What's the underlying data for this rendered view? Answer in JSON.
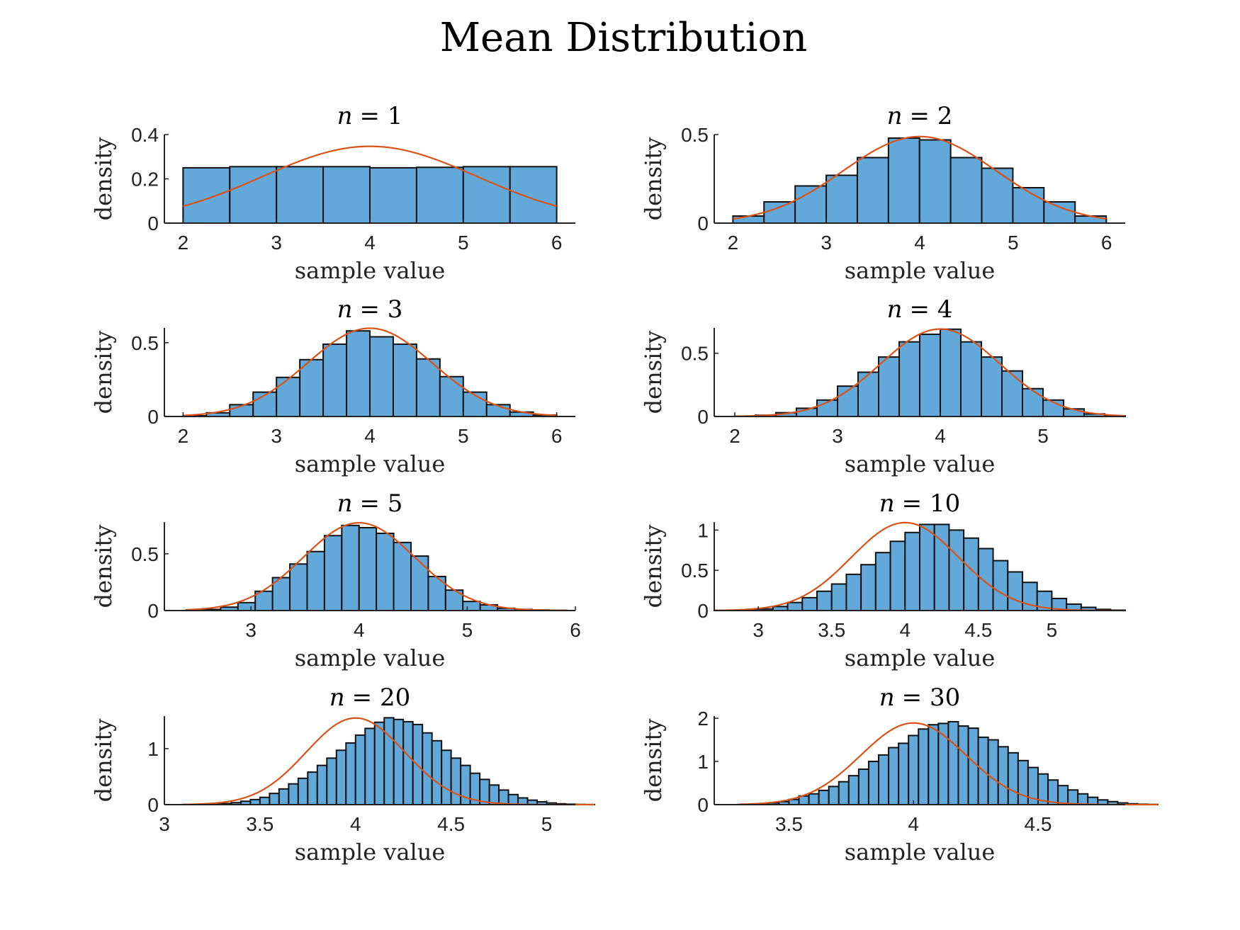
{
  "figure": {
    "title": "Mean Distribution",
    "colors": {
      "bar": "#62a8d9",
      "edge": "#111111",
      "curve": "#d95319"
    }
  },
  "chart_data": [
    {
      "type": "bar",
      "title_var": "n",
      "title_eq": "= 1",
      "xlabel": "sample value",
      "ylabel": "density",
      "xlim": [
        1.8,
        6.2
      ],
      "ylim": [
        0,
        0.4
      ],
      "xticks": [
        2,
        3,
        4,
        5,
        6
      ],
      "yticks": [
        0,
        0.2,
        0.4
      ],
      "bin_start": 2,
      "bin_width": 0.5,
      "values": [
        0.25,
        0.255,
        0.255,
        0.255,
        0.25,
        0.252,
        0.255,
        0.255
      ],
      "curve": {
        "mu": 4,
        "sigma": 1.15
      }
    },
    {
      "type": "bar",
      "title_var": "n",
      "title_eq": "= 2",
      "xlabel": "sample value",
      "ylabel": "density",
      "xlim": [
        1.8,
        6.2
      ],
      "ylim": [
        0,
        0.5
      ],
      "xticks": [
        2,
        3,
        4,
        5,
        6
      ],
      "yticks": [
        0,
        0.5
      ],
      "bin_start": 2,
      "bin_width": 0.333,
      "values": [
        0.04,
        0.12,
        0.21,
        0.27,
        0.37,
        0.48,
        0.47,
        0.37,
        0.31,
        0.2,
        0.12,
        0.04
      ],
      "curve": {
        "mu": 4,
        "sigma": 0.816
      }
    },
    {
      "type": "bar",
      "title_var": "n",
      "title_eq": "= 3",
      "xlabel": "sample value",
      "ylabel": "density",
      "xlim": [
        1.8,
        6.2
      ],
      "ylim": [
        0,
        0.6
      ],
      "xticks": [
        2,
        3,
        4,
        5,
        6
      ],
      "yticks": [
        0,
        0.5
      ],
      "bin_start": 2,
      "bin_width": 0.25,
      "values": [
        0.005,
        0.025,
        0.08,
        0.165,
        0.265,
        0.385,
        0.49,
        0.58,
        0.54,
        0.49,
        0.39,
        0.27,
        0.165,
        0.08,
        0.03,
        0.01
      ],
      "curve": {
        "mu": 4,
        "sigma": 0.667
      }
    },
    {
      "type": "bar",
      "title_var": "n",
      "title_eq": "= 4",
      "xlabel": "sample value",
      "ylabel": "density",
      "xlim": [
        1.8,
        5.8
      ],
      "ylim": [
        0,
        0.7
      ],
      "xticks": [
        2,
        3,
        4,
        5
      ],
      "yticks": [
        0,
        0.5
      ],
      "bin_start": 2,
      "bin_width": 0.2,
      "values": [
        0.002,
        0.01,
        0.03,
        0.065,
        0.13,
        0.24,
        0.35,
        0.47,
        0.59,
        0.65,
        0.69,
        0.59,
        0.47,
        0.36,
        0.22,
        0.13,
        0.06,
        0.02,
        0.005
      ],
      "curve": {
        "mu": 4,
        "sigma": 0.577
      }
    },
    {
      "type": "bar",
      "title_var": "n",
      "title_eq": "= 5",
      "xlabel": "sample value",
      "ylabel": "density",
      "xlim": [
        2.2,
        6.0
      ],
      "ylim": [
        0,
        0.78
      ],
      "xticks": [
        3,
        4,
        5,
        6
      ],
      "yticks": [
        0,
        0.5
      ],
      "bin_start": 2.4,
      "bin_width": 0.16,
      "values": [
        0.004,
        0.01,
        0.03,
        0.07,
        0.17,
        0.29,
        0.41,
        0.52,
        0.66,
        0.75,
        0.73,
        0.68,
        0.6,
        0.48,
        0.3,
        0.18,
        0.08,
        0.05,
        0.02,
        0.01,
        0.005,
        0.002
      ],
      "curve": {
        "mu": 4,
        "sigma": 0.516
      }
    },
    {
      "type": "bar",
      "title_var": "n",
      "title_eq": "= 10",
      "xlabel": "sample value",
      "ylabel": "density",
      "xlim": [
        2.7,
        5.5
      ],
      "ylim": [
        0,
        1.1
      ],
      "xticks": [
        3,
        3.5,
        4,
        4.5,
        5
      ],
      "yticks": [
        0,
        0.5,
        1
      ],
      "bin_start": 2.7,
      "bin_width": 0.1,
      "values": [
        0.002,
        0.004,
        0.008,
        0.02,
        0.05,
        0.1,
        0.16,
        0.24,
        0.33,
        0.45,
        0.57,
        0.72,
        0.86,
        0.97,
        1.07,
        1.07,
        1.0,
        0.9,
        0.77,
        0.62,
        0.48,
        0.35,
        0.24,
        0.15,
        0.08,
        0.04,
        0.015,
        0.005
      ],
      "curve": {
        "mu": 4,
        "sigma": 0.365
      }
    },
    {
      "type": "bar",
      "title_var": "n",
      "title_eq": "= 20",
      "xlabel": "sample value",
      "ylabel": "density",
      "xlim": [
        3.0,
        5.15
      ],
      "ylim": [
        0,
        1.58
      ],
      "xticks": [
        3,
        3.5,
        4,
        4.5,
        5
      ],
      "yticks": [
        0,
        1
      ],
      "bin_start": 3.1,
      "bin_width": 0.05,
      "values": [
        0.002,
        0.003,
        0.005,
        0.01,
        0.02,
        0.035,
        0.06,
        0.09,
        0.13,
        0.2,
        0.28,
        0.37,
        0.47,
        0.58,
        0.7,
        0.83,
        0.97,
        1.1,
        1.24,
        1.36,
        1.47,
        1.55,
        1.52,
        1.48,
        1.43,
        1.28,
        1.14,
        0.97,
        0.83,
        0.7,
        0.56,
        0.45,
        0.35,
        0.26,
        0.18,
        0.12,
        0.08,
        0.05,
        0.03,
        0.015,
        0.008,
        0.004,
        0.002
      ],
      "curve": {
        "mu": 4,
        "sigma": 0.258
      }
    },
    {
      "type": "bar",
      "title_var": "n",
      "title_eq": "= 30",
      "xlabel": "sample value",
      "ylabel": "density",
      "xlim": [
        3.2,
        4.85
      ],
      "ylim": [
        0,
        2.05
      ],
      "xticks": [
        3.5,
        4,
        4.5
      ],
      "yticks": [
        0,
        1,
        2
      ],
      "bin_start": 3.3,
      "bin_width": 0.04,
      "values": [
        0.005,
        0.01,
        0.02,
        0.04,
        0.07,
        0.12,
        0.2,
        0.25,
        0.33,
        0.42,
        0.53,
        0.67,
        0.82,
        1.0,
        1.15,
        1.32,
        1.42,
        1.6,
        1.75,
        1.85,
        1.88,
        1.92,
        1.82,
        1.77,
        1.56,
        1.5,
        1.34,
        1.2,
        1.02,
        0.86,
        0.71,
        0.57,
        0.44,
        0.34,
        0.25,
        0.17,
        0.11,
        0.07,
        0.04,
        0.02,
        0.01,
        0.005
      ],
      "curve": {
        "mu": 4,
        "sigma": 0.211
      }
    }
  ]
}
